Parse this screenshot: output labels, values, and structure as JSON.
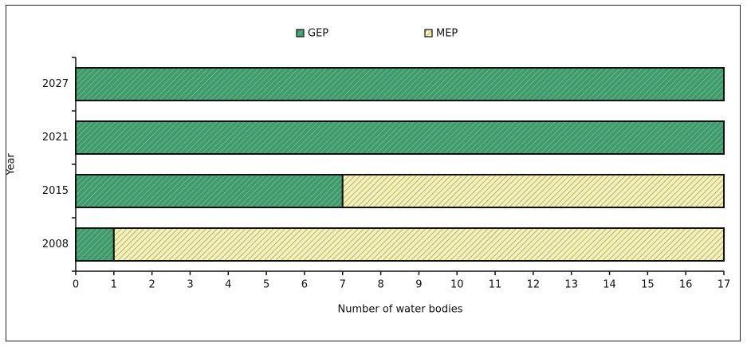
{
  "chart_data": {
    "type": "stacked-barh",
    "categories": [
      "2008",
      "2015",
      "2021",
      "2027"
    ],
    "series": [
      {
        "name": "GEP",
        "color": "#3f9a6c",
        "values": [
          1,
          7,
          17,
          17
        ]
      },
      {
        "name": "MEP",
        "color": "#f6f2a6",
        "values": [
          16,
          10,
          0,
          0
        ]
      }
    ],
    "xlabel": "Number of water bodies",
    "ylabel": "Year",
    "xlim": [
      0,
      17
    ],
    "xticks": [
      0,
      1,
      2,
      3,
      4,
      5,
      6,
      7,
      8,
      9,
      10,
      11,
      12,
      13,
      14,
      15,
      16,
      17
    ],
    "legend": "top"
  }
}
